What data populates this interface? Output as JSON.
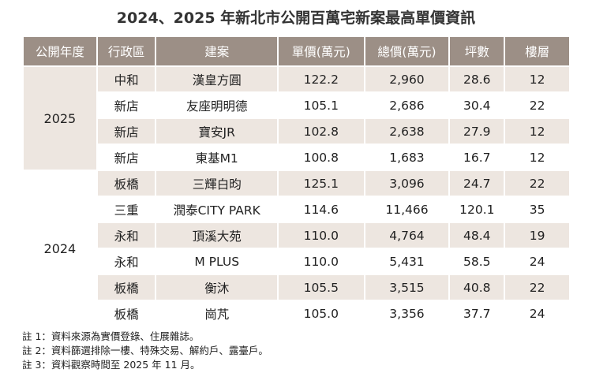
{
  "title": "2024、2025 年新北市公開百萬宅新案最高單價資訊",
  "table": {
    "header": [
      "公開年度",
      "行政區",
      "建案",
      "單價(萬元)",
      "總價(萬元)",
      "坪數",
      "樓層"
    ],
    "groups": [
      {
        "year": "2025",
        "rows": [
          [
            "中和",
            "漢皇方圓",
            "122.2",
            "2,960",
            "28.6",
            "12"
          ],
          [
            "新店",
            "友座明明德",
            "105.1",
            "2,686",
            "30.4",
            "22"
          ],
          [
            "新店",
            "寶安JR",
            "102.8",
            "2,638",
            "27.9",
            "12"
          ],
          [
            "新店",
            "東基M1",
            "100.8",
            "1,683",
            "16.7",
            "12"
          ]
        ]
      },
      {
        "year": "2024",
        "rows": [
          [
            "板橋",
            "三輝白昀",
            "125.1",
            "3,096",
            "24.7",
            "22"
          ],
          [
            "三重",
            "潤泰CITY PARK",
            "114.6",
            "11,466",
            "120.1",
            "35"
          ],
          [
            "永和",
            "頂溪大苑",
            "110.0",
            "4,764",
            "48.4",
            "19"
          ],
          [
            "永和",
            "M PLUS",
            "110.0",
            "5,431",
            "58.5",
            "24"
          ],
          [
            "板橋",
            "衡沐",
            "105.5",
            "3,515",
            "40.8",
            "22"
          ],
          [
            "板橋",
            "崗芃",
            "105.0",
            "3,356",
            "37.7",
            "24"
          ]
        ]
      }
    ]
  },
  "notes": [
    "註 1：資料來源為實價登錄、住展雜誌。",
    "註 2：資料篩選排除一樓、特殊交易、解約戶、露臺戶。",
    "註 3：資料觀察時間至 2025 年 11 月。"
  ]
}
